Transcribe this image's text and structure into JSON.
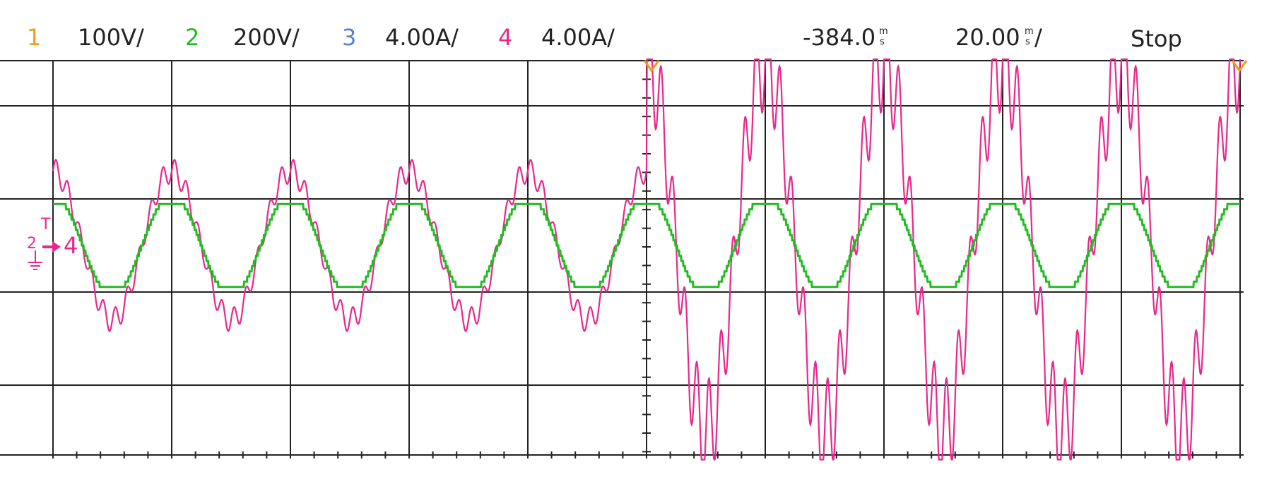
{
  "header": {
    "channels": [
      {
        "num": "1",
        "scale": "100V/",
        "color": "#f39a1c"
      },
      {
        "num": "2",
        "scale": "200V/",
        "color": "#22bb22"
      },
      {
        "num": "3",
        "scale": "4.00A/",
        "color": "#5a7fd8"
      },
      {
        "num": "4",
        "scale": "4.00A/",
        "color": "#e8288c"
      }
    ],
    "trigger_position": "-384.0",
    "trigger_position_unit_top": "m",
    "trigger_position_unit_bottom": "s",
    "timebase": "20.00",
    "timebase_unit_top": "m",
    "timebase_unit_bottom": "s",
    "timebase_suffix": "/",
    "run_state": "Stop"
  },
  "markers": {
    "ground_label": "4",
    "trigger_letter": "T",
    "channel_label": "2"
  },
  "colors": {
    "grid": "#222222",
    "ch2": "#22bb22",
    "ch4": "#e8288c",
    "trigger": "#f39a1c"
  },
  "chart_data": {
    "type": "line",
    "x_unit": "divisions",
    "y_unit": "divisions",
    "xlim": [
      0,
      10
    ],
    "ylim": [
      -2.3,
      2.0
    ],
    "trigger_time_div": 5,
    "series": [
      {
        "name": "2",
        "color": "#22bb22",
        "waveform": "quantized sine",
        "fundamental_cycles_per_div": 1.0,
        "amplitude_div": 0.5,
        "peak_x_div": [
          1.0,
          2.0,
          3.0,
          4.0,
          5.0,
          6.0,
          7.0,
          8.0,
          9.0,
          10.0
        ],
        "trough_x_div": [
          0.5,
          1.5,
          2.5,
          3.5,
          4.5,
          5.5,
          6.5,
          7.5,
          8.5,
          9.5
        ]
      },
      {
        "name": "4",
        "color": "#e8288c",
        "waveform": "sine with ripple",
        "fundamental_cycles_per_div": 1.0,
        "segments": [
          {
            "x_range": [
              0,
              5
            ],
            "peak_amplitude_div": 0.8
          },
          {
            "x_range": [
              5,
              10
            ],
            "peak_amplitude_div": 2.0
          }
        ],
        "ripple_cycles_per_div": 10,
        "ripple_amplitude_div_before": 0.13,
        "ripple_amplitude_div_after": 0.55
      }
    ]
  }
}
